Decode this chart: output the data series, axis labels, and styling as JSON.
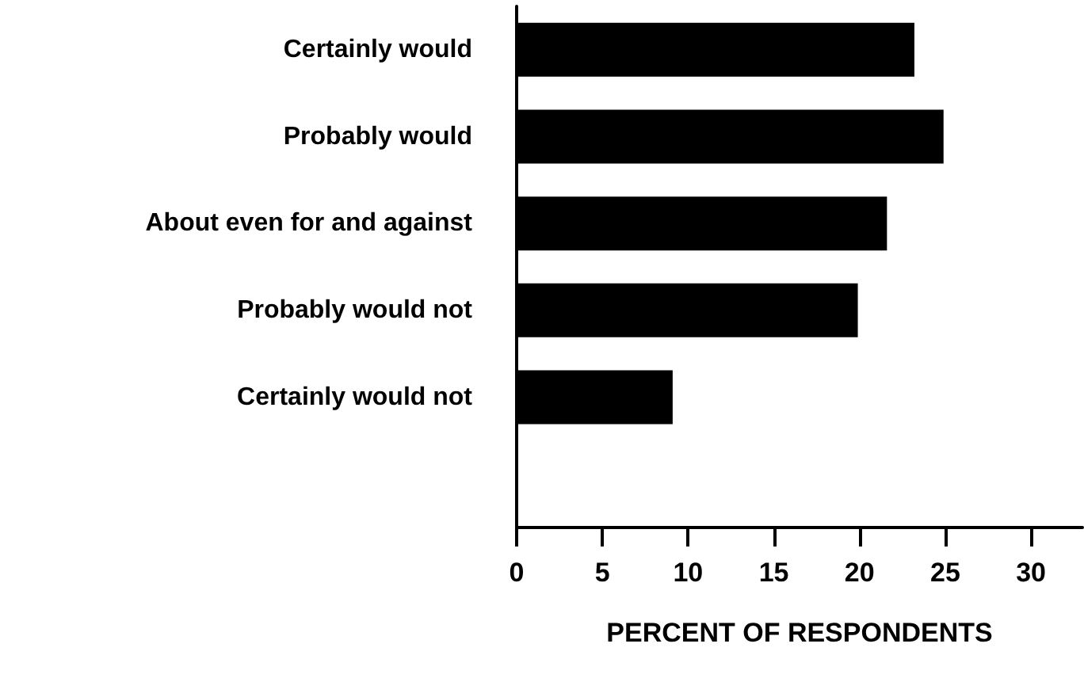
{
  "chart_data": {
    "type": "bar",
    "orientation": "horizontal",
    "xlabel": "PERCENT OF RESPONDENTS",
    "categories": [
      "Certainly would",
      "Probably would",
      "About even for and against",
      "Probably would not",
      "Certainly would not",
      null
    ],
    "values": [
      23.2,
      24.9,
      21.6,
      19.9,
      9.1,
      null
    ],
    "color": "#000000",
    "xlim": [
      0,
      33
    ],
    "xticks": [
      0,
      5,
      10,
      15,
      20,
      25,
      30
    ],
    "grid": false
  }
}
